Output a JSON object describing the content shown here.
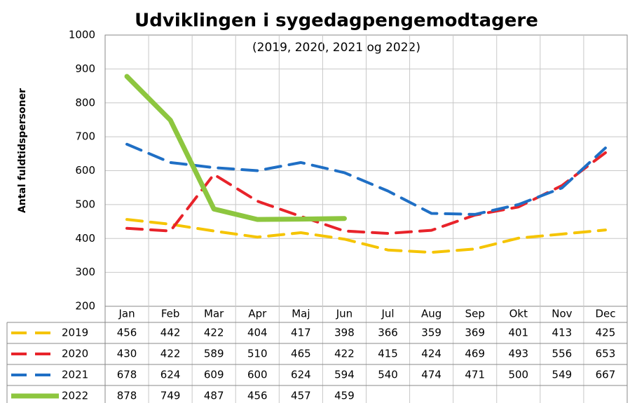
{
  "chart_data": {
    "type": "line",
    "title": "Udviklingen i sygedagpengemodtagere",
    "subtitle": "(2019, 2020, 2021 og 2022)",
    "y_label": "Antal fuldtidspersoner",
    "categories": [
      "Jan",
      "Feb",
      "Mar",
      "Apr",
      "Maj",
      "Jun",
      "Jul",
      "Aug",
      "Sep",
      "Okt",
      "Nov",
      "Dec"
    ],
    "series": [
      {
        "name": "2019",
        "color": "#f5c400",
        "dashed": true,
        "values": [
          456,
          442,
          422,
          404,
          417,
          398,
          366,
          359,
          369,
          401,
          413,
          425
        ]
      },
      {
        "name": "2020",
        "color": "#e8232a",
        "dashed": true,
        "values": [
          430,
          422,
          589,
          510,
          465,
          422,
          415,
          424,
          469,
          493,
          556,
          653
        ]
      },
      {
        "name": "2021",
        "color": "#1f6fc5",
        "dashed": true,
        "values": [
          678,
          624,
          609,
          600,
          624,
          594,
          540,
          474,
          471,
          500,
          549,
          667
        ]
      },
      {
        "name": "2022",
        "color": "#8dc63f",
        "dashed": false,
        "values": [
          878,
          749,
          487,
          456,
          457,
          459,
          null,
          null,
          null,
          null,
          null,
          null
        ]
      }
    ],
    "ylim": [
      200,
      1000
    ],
    "yticks": [
      200,
      300,
      400,
      500,
      600,
      700,
      800,
      900,
      1000
    ],
    "grid": true
  }
}
